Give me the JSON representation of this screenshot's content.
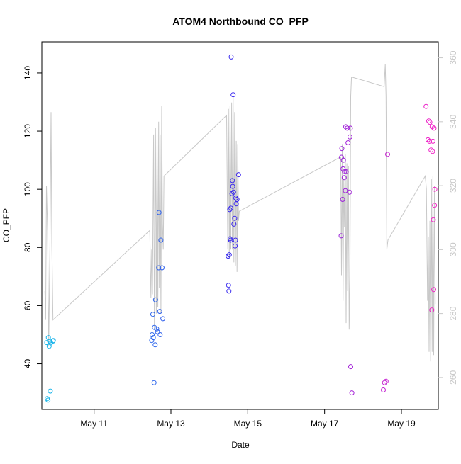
{
  "chart_data": {
    "type": "scatter",
    "title": "ATOM4 Northbound CO_PFP",
    "xlabel": "Date",
    "ylabel": "CO_PFP",
    "x_unit": "days since May 10 00:00",
    "xlim": [
      9.64,
      19.96
    ],
    "ylim": [
      24.3,
      150.7
    ],
    "y2lim": [
      250.0,
      365.0
    ],
    "x_ticks": [
      {
        "value": 11,
        "label": "May 11"
      },
      {
        "value": 13,
        "label": "May 13"
      },
      {
        "value": 15,
        "label": "May 15"
      },
      {
        "value": 17,
        "label": "May 17"
      },
      {
        "value": 19,
        "label": "May 19"
      }
    ],
    "y_ticks": [
      {
        "value": 40,
        "label": "40"
      },
      {
        "value": 60,
        "label": "60"
      },
      {
        "value": 80,
        "label": "80"
      },
      {
        "value": 100,
        "label": "100"
      },
      {
        "value": 120,
        "label": "120"
      },
      {
        "value": 140,
        "label": "140"
      }
    ],
    "y2_ticks": [
      {
        "value": 260,
        "label": "260"
      },
      {
        "value": 280,
        "label": "280"
      },
      {
        "value": 300,
        "label": "300"
      },
      {
        "value": 320,
        "label": "320"
      },
      {
        "value": 340,
        "label": "340"
      },
      {
        "value": 360,
        "label": "360"
      }
    ],
    "colors": {
      "line": "#c8c8c8",
      "right_axis": "#c8c8c8",
      "ramp_start": "#1ab8ea",
      "ramp_mid": "#3b22ee",
      "ramp_end": "#f321c6"
    },
    "points": [
      {
        "x": 9.77,
        "y": 47.3
      },
      {
        "x": 9.78,
        "y": 28.0
      },
      {
        "x": 9.8,
        "y": 27.5
      },
      {
        "x": 9.81,
        "y": 49.0
      },
      {
        "x": 9.83,
        "y": 46.0
      },
      {
        "x": 9.84,
        "y": 47.8
      },
      {
        "x": 9.86,
        "y": 30.6
      },
      {
        "x": 9.87,
        "y": 47.2
      },
      {
        "x": 9.93,
        "y": 47.8
      },
      {
        "x": 9.94,
        "y": 48.0
      },
      {
        "x": 12.5,
        "y": 48.0
      },
      {
        "x": 12.51,
        "y": 50.0
      },
      {
        "x": 12.53,
        "y": 57.0
      },
      {
        "x": 12.54,
        "y": 49.0
      },
      {
        "x": 12.56,
        "y": 33.5
      },
      {
        "x": 12.57,
        "y": 52.5
      },
      {
        "x": 12.59,
        "y": 46.5
      },
      {
        "x": 12.6,
        "y": 62.0
      },
      {
        "x": 12.63,
        "y": 52.0
      },
      {
        "x": 12.65,
        "y": 51.0
      },
      {
        "x": 12.68,
        "y": 73.0
      },
      {
        "x": 12.69,
        "y": 92.0
      },
      {
        "x": 12.71,
        "y": 58.0
      },
      {
        "x": 12.72,
        "y": 50.0
      },
      {
        "x": 12.74,
        "y": 82.5
      },
      {
        "x": 12.77,
        "y": 73.0
      },
      {
        "x": 12.79,
        "y": 55.5
      },
      {
        "x": 14.49,
        "y": 77.0
      },
      {
        "x": 14.5,
        "y": 67.0
      },
      {
        "x": 14.51,
        "y": 65.0
      },
      {
        "x": 14.52,
        "y": 77.5
      },
      {
        "x": 14.53,
        "y": 93.0
      },
      {
        "x": 14.54,
        "y": 83.0
      },
      {
        "x": 14.55,
        "y": 82.5
      },
      {
        "x": 14.56,
        "y": 93.5
      },
      {
        "x": 14.57,
        "y": 145.5
      },
      {
        "x": 14.59,
        "y": 98.5
      },
      {
        "x": 14.6,
        "y": 103.0
      },
      {
        "x": 14.61,
        "y": 101.0
      },
      {
        "x": 14.62,
        "y": 132.5
      },
      {
        "x": 14.63,
        "y": 99.0
      },
      {
        "x": 14.64,
        "y": 88.0
      },
      {
        "x": 14.66,
        "y": 90.0
      },
      {
        "x": 14.67,
        "y": 80.5
      },
      {
        "x": 14.68,
        "y": 82.5
      },
      {
        "x": 14.69,
        "y": 97.0
      },
      {
        "x": 14.7,
        "y": 95.0
      },
      {
        "x": 14.72,
        "y": 96.5
      },
      {
        "x": 14.76,
        "y": 105.0
      },
      {
        "x": 17.43,
        "y": 84.0
      },
      {
        "x": 17.44,
        "y": 111.0
      },
      {
        "x": 17.45,
        "y": 114.0
      },
      {
        "x": 17.47,
        "y": 96.5
      },
      {
        "x": 17.48,
        "y": 107.0
      },
      {
        "x": 17.49,
        "y": 110.0
      },
      {
        "x": 17.51,
        "y": 104.0
      },
      {
        "x": 17.52,
        "y": 106.0
      },
      {
        "x": 17.54,
        "y": 99.5
      },
      {
        "x": 17.55,
        "y": 121.5
      },
      {
        "x": 17.56,
        "y": 106.0
      },
      {
        "x": 17.59,
        "y": 121.0
      },
      {
        "x": 17.61,
        "y": 116.0
      },
      {
        "x": 17.65,
        "y": 99.0
      },
      {
        "x": 17.66,
        "y": 118.0
      },
      {
        "x": 17.67,
        "y": 121.0
      },
      {
        "x": 17.68,
        "y": 39.0
      },
      {
        "x": 17.71,
        "y": 30.0
      },
      {
        "x": 18.53,
        "y": 31.0
      },
      {
        "x": 18.56,
        "y": 33.5
      },
      {
        "x": 18.6,
        "y": 34.0
      },
      {
        "x": 18.64,
        "y": 112.0
      },
      {
        "x": 19.64,
        "y": 128.5
      },
      {
        "x": 19.69,
        "y": 117.0
      },
      {
        "x": 19.71,
        "y": 123.5
      },
      {
        "x": 19.73,
        "y": 116.5
      },
      {
        "x": 19.74,
        "y": 123.0
      },
      {
        "x": 19.77,
        "y": 113.5
      },
      {
        "x": 19.79,
        "y": 58.5
      },
      {
        "x": 19.8,
        "y": 121.5
      },
      {
        "x": 19.81,
        "y": 113.0
      },
      {
        "x": 19.82,
        "y": 116.5
      },
      {
        "x": 19.83,
        "y": 89.5
      },
      {
        "x": 19.84,
        "y": 65.5
      },
      {
        "x": 19.85,
        "y": 121.0
      },
      {
        "x": 19.86,
        "y": 94.5
      },
      {
        "x": 19.87,
        "y": 100.0
      }
    ],
    "line_series": [
      {
        "x": 9.72,
        "y2": 287
      },
      {
        "x": 9.74,
        "y2": 278
      },
      {
        "x": 9.76,
        "y2": 320
      },
      {
        "x": 9.79,
        "y2": 306
      },
      {
        "x": 9.82,
        "y2": 270
      },
      {
        "x": 9.85,
        "y2": 301
      },
      {
        "x": 9.88,
        "y2": 343
      },
      {
        "x": 9.9,
        "y2": 302
      },
      {
        "x": 9.93,
        "y2": 278
      },
      {
        "x": 12.45,
        "y2": 306
      },
      {
        "x": 12.48,
        "y2": 285
      },
      {
        "x": 12.5,
        "y2": 300
      },
      {
        "x": 12.52,
        "y2": 286
      },
      {
        "x": 12.55,
        "y2": 336
      },
      {
        "x": 12.57,
        "y2": 275
      },
      {
        "x": 12.6,
        "y2": 338
      },
      {
        "x": 12.62,
        "y2": 280
      },
      {
        "x": 12.64,
        "y2": 338
      },
      {
        "x": 12.66,
        "y2": 282
      },
      {
        "x": 12.68,
        "y2": 340
      },
      {
        "x": 12.7,
        "y2": 288
      },
      {
        "x": 12.72,
        "y2": 336
      },
      {
        "x": 12.74,
        "y2": 280
      },
      {
        "x": 12.76,
        "y2": 345
      },
      {
        "x": 12.78,
        "y2": 308
      },
      {
        "x": 12.8,
        "y2": 300
      },
      {
        "x": 12.82,
        "y2": 323
      },
      {
        "x": 14.45,
        "y2": 342
      },
      {
        "x": 14.48,
        "y2": 300
      },
      {
        "x": 14.5,
        "y2": 344
      },
      {
        "x": 14.52,
        "y2": 297
      },
      {
        "x": 14.54,
        "y2": 345
      },
      {
        "x": 14.56,
        "y2": 300
      },
      {
        "x": 14.58,
        "y2": 346
      },
      {
        "x": 14.6,
        "y2": 300
      },
      {
        "x": 14.62,
        "y2": 348
      },
      {
        "x": 14.64,
        "y2": 296
      },
      {
        "x": 14.66,
        "y2": 343
      },
      {
        "x": 14.68,
        "y2": 295
      },
      {
        "x": 14.7,
        "y2": 334
      },
      {
        "x": 14.72,
        "y2": 293
      },
      {
        "x": 14.74,
        "y2": 333
      },
      {
        "x": 14.76,
        "y2": 309
      },
      {
        "x": 14.78,
        "y2": 312
      },
      {
        "x": 17.42,
        "y2": 329
      },
      {
        "x": 17.44,
        "y2": 292
      },
      {
        "x": 17.46,
        "y2": 333
      },
      {
        "x": 17.48,
        "y2": 284
      },
      {
        "x": 17.5,
        "y2": 322
      },
      {
        "x": 17.52,
        "y2": 307
      },
      {
        "x": 17.54,
        "y2": 330
      },
      {
        "x": 17.56,
        "y2": 277
      },
      {
        "x": 17.58,
        "y2": 327
      },
      {
        "x": 17.6,
        "y2": 287
      },
      {
        "x": 17.62,
        "y2": 326
      },
      {
        "x": 17.64,
        "y2": 275
      },
      {
        "x": 17.66,
        "y2": 291
      },
      {
        "x": 17.68,
        "y2": 348
      },
      {
        "x": 17.7,
        "y2": 354
      },
      {
        "x": 18.55,
        "y2": 351
      },
      {
        "x": 18.58,
        "y2": 358
      },
      {
        "x": 18.6,
        "y2": 348
      },
      {
        "x": 18.62,
        "y2": 300
      },
      {
        "x": 18.65,
        "y2": 303
      },
      {
        "x": 19.62,
        "y2": 323
      },
      {
        "x": 19.65,
        "y2": 319
      },
      {
        "x": 19.68,
        "y2": 284
      },
      {
        "x": 19.7,
        "y2": 304
      },
      {
        "x": 19.72,
        "y2": 268
      },
      {
        "x": 19.74,
        "y2": 309
      },
      {
        "x": 19.76,
        "y2": 265
      },
      {
        "x": 19.78,
        "y2": 322
      },
      {
        "x": 19.8,
        "y2": 268
      },
      {
        "x": 19.82,
        "y2": 323
      },
      {
        "x": 19.84,
        "y2": 267
      },
      {
        "x": 19.86,
        "y2": 320
      },
      {
        "x": 19.88,
        "y2": 283
      }
    ]
  }
}
